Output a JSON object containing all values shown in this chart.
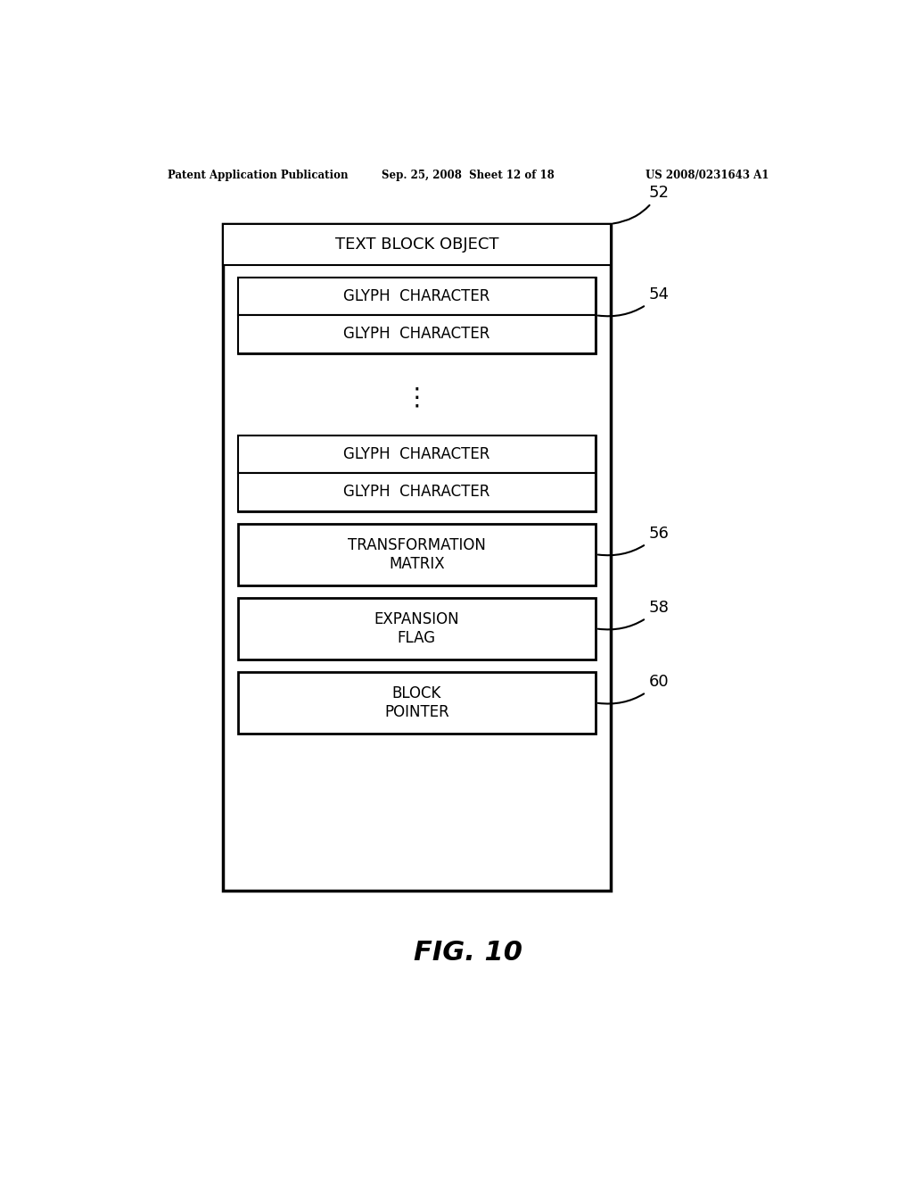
{
  "header_left": "Patent Application Publication",
  "header_mid": "Sep. 25, 2008  Sheet 12 of 18",
  "header_right": "US 2008/0231643 A1",
  "fig_label": "FIG. 10",
  "outer_box_label": "52",
  "outer_title": "TEXT BLOCK OBJECT",
  "group1_label": "54",
  "group1_boxes": [
    "GLYPH  CHARACTER",
    "GLYPH  CHARACTER"
  ],
  "dots": "⋮",
  "group2_boxes": [
    "GLYPH  CHARACTER",
    "GLYPH  CHARACTER"
  ],
  "box_transformation": "TRANSFORMATION\nMATRIX",
  "box_transformation_label": "56",
  "box_expansion": "EXPANSION\nFLAG",
  "box_expansion_label": "58",
  "box_block": "BLOCK\nPOINTER",
  "box_block_label": "60",
  "bg_color": "#ffffff",
  "box_edge_color": "#000000",
  "text_color": "#000000"
}
